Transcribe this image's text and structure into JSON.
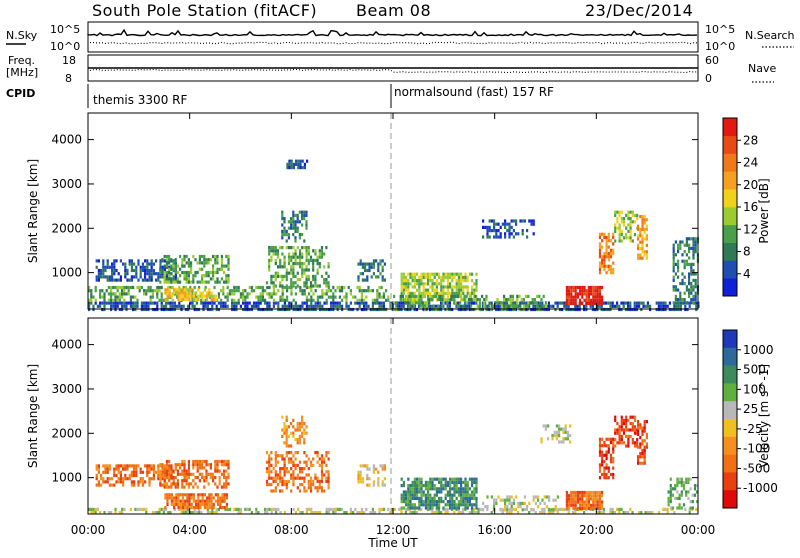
{
  "header": {
    "station": "South Pole Station (fitACF)",
    "beam": "Beam 08",
    "date": "23/Dec/2014"
  },
  "nsky_panel": {
    "left_label": "N.Sky",
    "right_label": "N.Search",
    "left_ticks": [
      "10^5",
      "10^0"
    ],
    "right_ticks": [
      "10^5",
      "10^0"
    ]
  },
  "freq_panel": {
    "left_label_1": "Freq.",
    "left_label_2": "[MHz]",
    "right_label": "Nave",
    "left_ticks": [
      "18",
      "8"
    ],
    "right_ticks": [
      "60",
      "0"
    ]
  },
  "cpid": {
    "label": "CPID",
    "mode_1": "themis 3300 RF",
    "mode_2": "normalsound (fast) 157 RF"
  },
  "chart_data": [
    {
      "type": "heatmap",
      "title": "Power",
      "ylabel": "Slant Range [km]",
      "xlabel": "",
      "yticks": [
        1000,
        2000,
        3000,
        4000
      ],
      "ylim": [
        180,
        4600
      ],
      "xticks": [
        "00:00",
        "04:00",
        "08:00",
        "12:00",
        "16:00",
        "20:00",
        "00:00"
      ],
      "xlim_hours": [
        0,
        24
      ],
      "colorbar": {
        "label": "Power [dB]",
        "ticks": [
          "4",
          "8",
          "12",
          "16",
          "20",
          "24",
          "28"
        ],
        "colors": [
          "#1020d8",
          "#1e4fb0",
          "#2f7a55",
          "#4aa04a",
          "#9acb30",
          "#f0d21a",
          "#f5a020",
          "#f07818",
          "#e84a14",
          "#e01a10"
        ]
      },
      "features": [
        {
          "t0": 0.0,
          "t1": 24.0,
          "r0": 180,
          "r1": 350,
          "level": 1,
          "density": 0.7
        },
        {
          "t0": 0.0,
          "t1": 11.8,
          "r0": 350,
          "r1": 700,
          "level": 3,
          "density": 0.45
        },
        {
          "t0": 3.0,
          "t1": 5.0,
          "r0": 400,
          "r1": 650,
          "level": 5,
          "density": 0.8
        },
        {
          "t0": 0.3,
          "t1": 3.5,
          "r0": 800,
          "r1": 1300,
          "level": 1,
          "density": 0.6
        },
        {
          "t0": 2.8,
          "t1": 5.5,
          "r0": 800,
          "r1": 1400,
          "level": 3,
          "density": 0.55
        },
        {
          "t0": 7.0,
          "t1": 9.5,
          "r0": 700,
          "r1": 1600,
          "level": 3,
          "density": 0.5
        },
        {
          "t0": 7.6,
          "t1": 8.6,
          "r0": 1700,
          "r1": 2400,
          "level": 2,
          "density": 0.45
        },
        {
          "t0": 7.8,
          "t1": 8.6,
          "r0": 3350,
          "r1": 3550,
          "level": 1,
          "density": 0.7
        },
        {
          "t0": 10.6,
          "t1": 11.7,
          "r0": 800,
          "r1": 1300,
          "level": 2,
          "density": 0.45
        },
        {
          "t0": 12.3,
          "t1": 15.3,
          "r0": 400,
          "r1": 1000,
          "level": 4,
          "density": 0.75
        },
        {
          "t0": 12.0,
          "t1": 18.0,
          "r0": 180,
          "r1": 500,
          "level": 3,
          "density": 0.45
        },
        {
          "t0": 15.5,
          "t1": 17.5,
          "r0": 1800,
          "r1": 2200,
          "level": 1,
          "density": 0.45
        },
        {
          "t0": 18.8,
          "t1": 20.2,
          "r0": 300,
          "r1": 700,
          "level": 9,
          "density": 0.9
        },
        {
          "t0": 20.1,
          "t1": 20.7,
          "r0": 1000,
          "r1": 1900,
          "level": 7,
          "density": 0.65
        },
        {
          "t0": 20.7,
          "t1": 21.6,
          "r0": 1700,
          "r1": 2400,
          "level": 4,
          "density": 0.5
        },
        {
          "t0": 21.6,
          "t1": 22.0,
          "r0": 1300,
          "r1": 2300,
          "level": 6,
          "density": 0.6
        },
        {
          "t0": 23.0,
          "t1": 24.0,
          "r0": 300,
          "r1": 1800,
          "level": 2,
          "density": 0.45
        }
      ]
    },
    {
      "type": "heatmap",
      "title": "Velocity",
      "ylabel": "Slant Range [km]",
      "xlabel": "Time UT",
      "yticks": [
        1000,
        2000,
        3000,
        4000
      ],
      "ylim": [
        180,
        4600
      ],
      "xticks": [
        "00:00",
        "04:00",
        "08:00",
        "12:00",
        "16:00",
        "20:00",
        "00:00"
      ],
      "xlim_hours": [
        0,
        24
      ],
      "colorbar": {
        "label": "Velocity [m s^-1]",
        "ticks": [
          "1000",
          "500",
          "100",
          "25",
          "-25",
          "-100",
          "-500",
          "-1000"
        ],
        "colors": [
          "#2038b8",
          "#2c6a9a",
          "#3d8a5a",
          "#60b040",
          "#b8b8b8",
          "#f0c020",
          "#f59020",
          "#f07014",
          "#e84010",
          "#e00a0a"
        ]
      },
      "features": [
        {
          "t0": 0.0,
          "t1": 24.0,
          "r0": 180,
          "r1": 320,
          "level": 4,
          "density": 0.5
        },
        {
          "t0": 0.3,
          "t1": 3.5,
          "r0": 800,
          "r1": 1300,
          "level": 7,
          "density": 0.6
        },
        {
          "t0": 2.8,
          "t1": 5.5,
          "r0": 800,
          "r1": 1400,
          "level": 7,
          "density": 0.55
        },
        {
          "t0": 3.0,
          "t1": 5.5,
          "r0": 300,
          "r1": 650,
          "level": 7,
          "density": 0.8
        },
        {
          "t0": 7.0,
          "t1": 9.5,
          "r0": 700,
          "r1": 1600,
          "level": 7,
          "density": 0.5
        },
        {
          "t0": 7.6,
          "t1": 8.6,
          "r0": 1700,
          "r1": 2400,
          "level": 6,
          "density": 0.45
        },
        {
          "t0": 10.6,
          "t1": 11.7,
          "r0": 800,
          "r1": 1300,
          "level": 5,
          "density": 0.45
        },
        {
          "t0": 12.3,
          "t1": 15.3,
          "r0": 300,
          "r1": 1000,
          "level": 2,
          "density": 0.75
        },
        {
          "t0": 15.5,
          "t1": 18.5,
          "r0": 300,
          "r1": 600,
          "level": 4,
          "density": 0.4
        },
        {
          "t0": 17.8,
          "t1": 19.0,
          "r0": 1800,
          "r1": 2200,
          "level": 4,
          "density": 0.45
        },
        {
          "t0": 18.8,
          "t1": 20.2,
          "r0": 300,
          "r1": 700,
          "level": 7,
          "density": 0.9
        },
        {
          "t0": 20.1,
          "t1": 20.7,
          "r0": 1000,
          "r1": 1900,
          "level": 8,
          "density": 0.65
        },
        {
          "t0": 20.7,
          "t1": 21.6,
          "r0": 1700,
          "r1": 2400,
          "level": 8,
          "density": 0.55
        },
        {
          "t0": 21.6,
          "t1": 22.0,
          "r0": 1300,
          "r1": 2300,
          "level": 8,
          "density": 0.6
        },
        {
          "t0": 22.8,
          "t1": 24.0,
          "r0": 300,
          "r1": 1000,
          "level": 3,
          "density": 0.45
        }
      ]
    }
  ]
}
